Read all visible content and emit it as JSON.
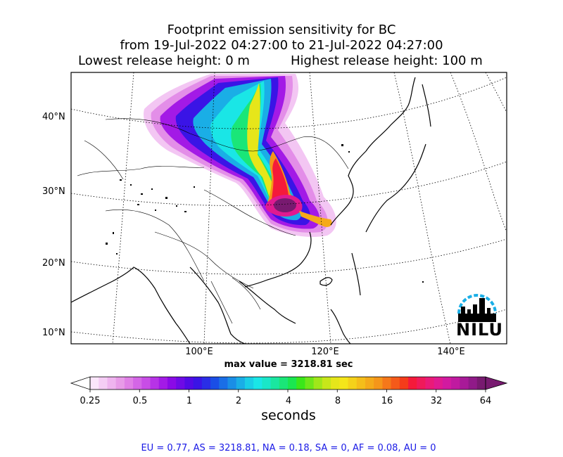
{
  "title": {
    "line1": "Footprint emission sensitivity for BC",
    "line2": "from 19-Jul-2022 04:27:00 to 21-Jul-2022 04:27:00",
    "lowest": "Lowest release height: 0 m",
    "highest": "Highest release height: 100 m"
  },
  "map": {
    "lat_labels": [
      "40°N",
      "30°N",
      "20°N",
      "10°N"
    ],
    "lon_labels": [
      "100°E",
      "120°E",
      "140°E"
    ],
    "max_value": "max value = 3218.81 sec",
    "logo": "NILU"
  },
  "colorbar": {
    "ticks": [
      "0.25",
      "0.5",
      "1",
      "2",
      "4",
      "8",
      "16",
      "32",
      "64"
    ],
    "label": "seconds",
    "colors": [
      "#fbe6fb",
      "#f5cdf5",
      "#efb4ef",
      "#e89be8",
      "#e080e6",
      "#d466e6",
      "#c84de6",
      "#b733e6",
      "#a31ae6",
      "#8a0ae6",
      "#6e0ae6",
      "#520ae6",
      "#3a14e6",
      "#2a2ee6",
      "#1a4ee6",
      "#1a6ee6",
      "#1a8ee6",
      "#1aaee6",
      "#1acee6",
      "#1ae6e6",
      "#1ae6c8",
      "#1ae6a0",
      "#1ae678",
      "#1ae650",
      "#3ae61a",
      "#6ee61a",
      "#a0e61a",
      "#c8e61a",
      "#e6e61a",
      "#f5e61a",
      "#f5d21a",
      "#f5be1a",
      "#f5aa1a",
      "#f5961a",
      "#f5781a",
      "#f55a1a",
      "#f53c1a",
      "#f51a3a",
      "#f01a5a",
      "#ea1a78",
      "#e01a90",
      "#d21aa0",
      "#c01aa0",
      "#a81a98",
      "#901a88",
      "#781a70"
    ]
  },
  "footer": "EU = 0.77,  AS = 3218.81,  NA = 0.18,  SA = 0,  AF = 0.08,  AU = 0"
}
